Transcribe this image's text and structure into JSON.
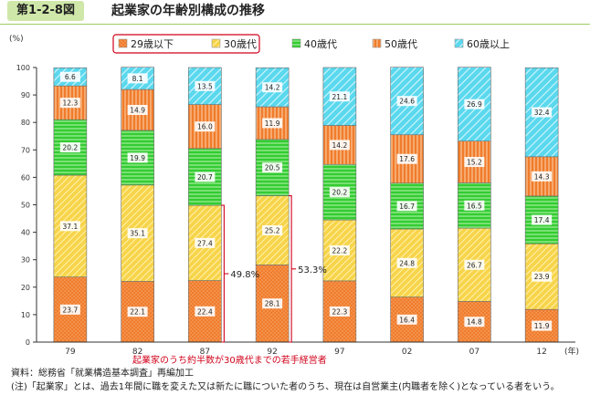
{
  "header": {
    "figure_number": "第1-2-8図",
    "title": "起業家の年齢別構成の推移"
  },
  "chart_data": {
    "type": "bar",
    "stacked": true,
    "ylabel": "(%)",
    "xlabel_unit": "(年)",
    "ylim": [
      0,
      100
    ],
    "yticks": [
      0,
      10,
      20,
      30,
      40,
      50,
      60,
      70,
      80,
      90,
      100
    ],
    "categories": [
      "79",
      "82",
      "87",
      "92",
      "97",
      "02",
      "07",
      "12"
    ],
    "series": [
      {
        "name": "29歳以下",
        "color": "#f07c2c",
        "pattern": "dots",
        "values": [
          23.7,
          22.1,
          22.4,
          28.1,
          22.3,
          16.4,
          14.8,
          11.9
        ]
      },
      {
        "name": "30歳代",
        "color": "#f7d44a",
        "pattern": "diagonal",
        "values": [
          37.1,
          35.1,
          27.4,
          25.2,
          22.2,
          24.8,
          26.7,
          23.9
        ]
      },
      {
        "name": "40歳代",
        "color": "#33cc33",
        "pattern": "horizontal",
        "values": [
          20.2,
          19.9,
          20.7,
          20.5,
          20.2,
          16.7,
          16.5,
          17.4
        ]
      },
      {
        "name": "50歳代",
        "color": "#f07c2c",
        "pattern": "vertical",
        "values": [
          12.3,
          14.9,
          16.0,
          11.9,
          14.2,
          17.6,
          15.2,
          14.3
        ]
      },
      {
        "name": "60歳以上",
        "color": "#5ad8ee",
        "pattern": "diagonal-light",
        "values": [
          6.6,
          8.1,
          13.5,
          14.2,
          21.1,
          24.6,
          26.9,
          32.4
        ]
      }
    ],
    "annotations": [
      {
        "category": "87",
        "text": "49.8%"
      },
      {
        "category": "92",
        "text": "53.3%"
      }
    ],
    "annotation_caption": "起業家のうち約半数が30歳代までの若手経営者",
    "legend_position": "top",
    "grid": false
  },
  "notes": {
    "source": "資料：総務省「就業構造基本調査」再編加工",
    "note": "(注)「起業家」とは、過去1年間に職を変えた又は新たに職についた者のうち、現在は自営業主(内職者を除く)となっている者をいう。"
  }
}
